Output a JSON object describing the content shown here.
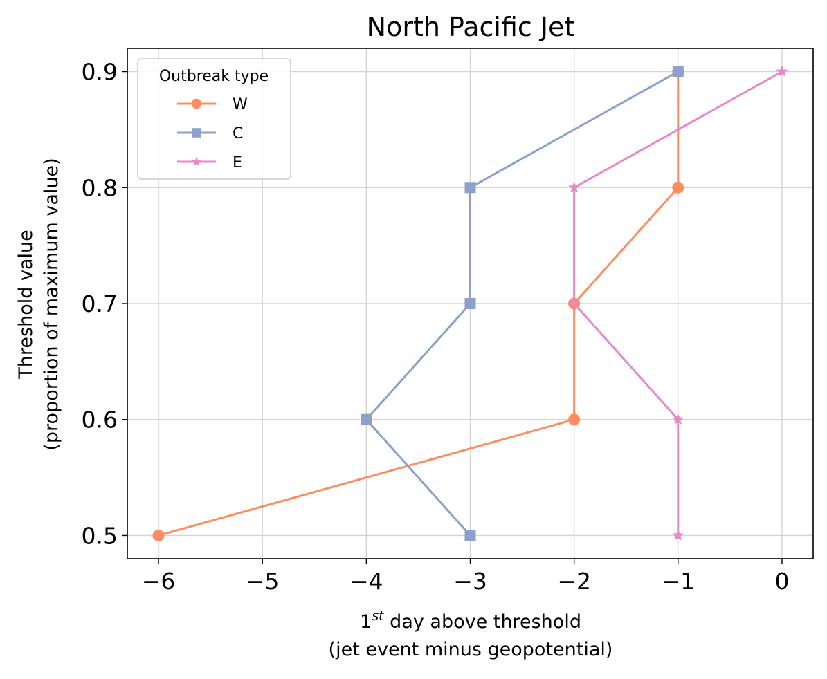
{
  "chart_data": {
    "type": "line",
    "title": "North Pacific Jet",
    "xlabel_line1_prefix": "1",
    "xlabel_line1_sup": "st",
    "xlabel_line1_suffix": " day above threshold",
    "xlabel_line2": "(jet event minus geopotential)",
    "ylabel_line1": "Threshold value",
    "ylabel_line2": "(proportion of maximum value)",
    "xlim": [
      -6.3,
      0.3
    ],
    "ylim": [
      0.48,
      0.92
    ],
    "xticks": [
      -6,
      -5,
      -4,
      -3,
      -2,
      -1,
      0
    ],
    "xtick_labels": [
      "−6",
      "−5",
      "−4",
      "−3",
      "−2",
      "−1",
      "0"
    ],
    "yticks": [
      0.5,
      0.6,
      0.7,
      0.8,
      0.9
    ],
    "ytick_labels": [
      "0.5",
      "0.6",
      "0.7",
      "0.8",
      "0.9"
    ],
    "grid": true,
    "legend": {
      "title": "Outbreak type",
      "placement": "top-left"
    },
    "series": [
      {
        "name": "W",
        "color": "#fc8d62",
        "marker": "circle",
        "x": [
          -6,
          -2,
          -2,
          -1,
          -1
        ],
        "y": [
          0.5,
          0.6,
          0.7,
          0.8,
          0.9
        ]
      },
      {
        "name": "C",
        "color": "#8da0cb",
        "marker": "square",
        "x": [
          -3,
          -4,
          -3,
          -3,
          -1
        ],
        "y": [
          0.5,
          0.6,
          0.7,
          0.8,
          0.9
        ]
      },
      {
        "name": "E",
        "color": "#e78ac3",
        "marker": "star",
        "x": [
          -1,
          -1,
          -2,
          -2,
          0
        ],
        "y": [
          0.5,
          0.6,
          0.7,
          0.8,
          0.9
        ]
      }
    ]
  }
}
